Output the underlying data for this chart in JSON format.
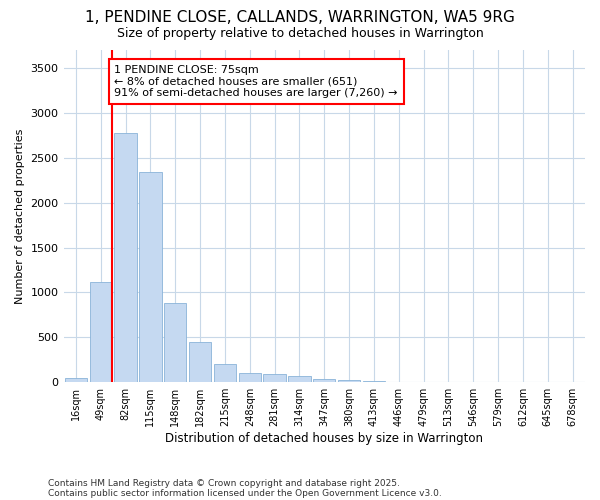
{
  "title1": "1, PENDINE CLOSE, CALLANDS, WARRINGTON, WA5 9RG",
  "title2": "Size of property relative to detached houses in Warrington",
  "xlabel": "Distribution of detached houses by size in Warrington",
  "ylabel": "Number of detached properties",
  "categories": [
    "16sqm",
    "49sqm",
    "82sqm",
    "115sqm",
    "148sqm",
    "182sqm",
    "215sqm",
    "248sqm",
    "281sqm",
    "314sqm",
    "347sqm",
    "380sqm",
    "413sqm",
    "446sqm",
    "479sqm",
    "513sqm",
    "546sqm",
    "579sqm",
    "612sqm",
    "645sqm",
    "678sqm"
  ],
  "values": [
    50,
    1120,
    2780,
    2340,
    880,
    450,
    200,
    105,
    90,
    65,
    35,
    20,
    10,
    5,
    3,
    2,
    1,
    1,
    0,
    0,
    0
  ],
  "bar_color": "#c5d9f1",
  "bar_edgecolor": "#8ab4d9",
  "bg_color": "#ffffff",
  "plot_bg_color": "#ffffff",
  "grid_color": "#c8d8e8",
  "annotation_title": "1 PENDINE CLOSE: 75sqm",
  "annotation_line1": "← 8% of detached houses are smaller (651)",
  "annotation_line2": "91% of semi-detached houses are larger (7,260) →",
  "ylim": [
    0,
    3700
  ],
  "yticks": [
    0,
    500,
    1000,
    1500,
    2000,
    2500,
    3000,
    3500
  ],
  "footnote1": "Contains HM Land Registry data © Crown copyright and database right 2025.",
  "footnote2": "Contains public sector information licensed under the Open Government Licence v3.0."
}
